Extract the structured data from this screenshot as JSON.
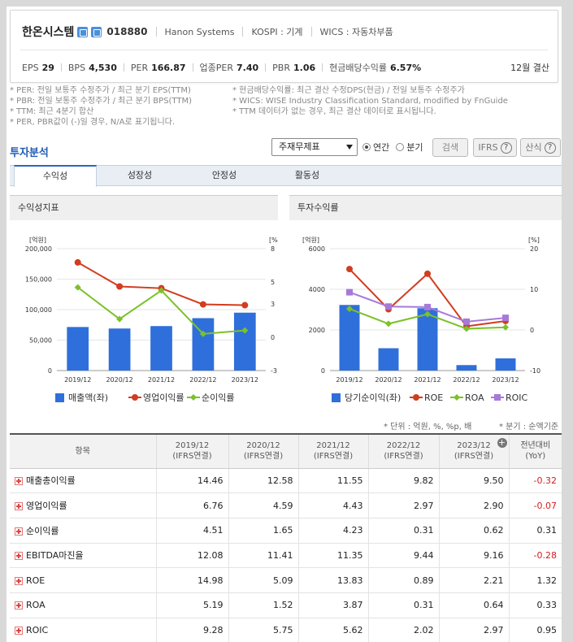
{
  "header": {
    "company_name": "한온시스템",
    "code": "018880",
    "english_name": "Hanon Systems",
    "market": "KOSPI : 기계",
    "wics": "WICS : 자동차부품",
    "metrics": [
      {
        "label": "EPS",
        "value": "29"
      },
      {
        "label": "BPS",
        "value": "4,530"
      },
      {
        "label": "PER",
        "value": "166.87"
      },
      {
        "label": "업종PER",
        "value": "7.40"
      },
      {
        "label": "PBR",
        "value": "1.06"
      },
      {
        "label": "현금배당수익률",
        "value": "6.57%"
      }
    ],
    "settlement": "12월 결산"
  },
  "notes": {
    "left": [
      "* PER: 전일 보통주 수정주가 / 최근 분기 EPS(TTM)",
      "* PBR: 전일 보통주 수정주가 / 최근 분기 BPS(TTM)",
      "* TTM: 최근 4분기 합산",
      "* PER, PBR값이 (-)일 경우, N/A로 표기됩니다."
    ],
    "right": [
      "* 현금배당수익률: 최근 결산 수정DPS(현금) / 전일 보통주 수정주가",
      "* WICS: WISE Industry Classification Standard, modified by FnGuide",
      "* TTM 데이터가 없는 경우, 최근 결산 데이터로 표시됩니다."
    ]
  },
  "section": {
    "title": "투자분석",
    "select_value": "주재무제표",
    "radio_annual": "연간",
    "radio_quarter": "분기",
    "search_button": "검색",
    "ifrs_button": "IFRS",
    "formula_button": "산식"
  },
  "tabs": [
    "수익성",
    "성장성",
    "안정성",
    "활동성"
  ],
  "panels": {
    "left_title": "수익성지표",
    "right_title": "투자수익률"
  },
  "chart_data": [
    {
      "type": "bar",
      "title": "수익성지표",
      "categories": [
        "2019/12",
        "2020/12",
        "2021/12",
        "2022/12",
        "2023/12"
      ],
      "left_axis_label": "[억원]",
      "right_axis_label": "[%]",
      "left_ylim": [
        0,
        200000
      ],
      "left_ticks": [
        "0",
        "50,000",
        "100,000",
        "150,000",
        "200,000"
      ],
      "right_ylim": [
        -3,
        8
      ],
      "right_ticks": [
        "-3",
        "0",
        "3",
        "5",
        "8"
      ],
      "series": [
        {
          "name": "매출액(좌)",
          "kind": "bar",
          "axis": "left",
          "color": "#2f6fdb",
          "values": [
            71500,
            69000,
            73000,
            86000,
            95000
          ]
        },
        {
          "name": "영업이익률",
          "kind": "line",
          "axis": "right",
          "color": "#d23c1f",
          "values": [
            6.76,
            4.59,
            4.43,
            2.97,
            2.9
          ]
        },
        {
          "name": "순이익률",
          "kind": "line",
          "axis": "right",
          "color": "#7cc12a",
          "values": [
            4.51,
            1.65,
            4.23,
            0.31,
            0.62
          ]
        }
      ]
    },
    {
      "type": "bar",
      "title": "투자수익률",
      "categories": [
        "2019/12",
        "2020/12",
        "2021/12",
        "2022/12",
        "2023/12"
      ],
      "left_axis_label": "[억원]",
      "right_axis_label": "[%]",
      "left_ylim": [
        0,
        6000
      ],
      "left_ticks": [
        "0",
        "2000",
        "4000",
        "6000"
      ],
      "right_ylim": [
        -10,
        20
      ],
      "right_ticks": [
        "-10",
        "0",
        "10",
        "20"
      ],
      "series": [
        {
          "name": "당기순이익(좌)",
          "kind": "bar",
          "axis": "left",
          "color": "#2f6fdb",
          "values": [
            3230,
            1100,
            3070,
            270,
            600
          ]
        },
        {
          "name": "ROE",
          "kind": "line",
          "axis": "right",
          "color": "#d23c1f",
          "values": [
            14.98,
            5.09,
            13.83,
            0.89,
            2.21
          ]
        },
        {
          "name": "ROA",
          "kind": "line",
          "axis": "right",
          "color": "#7cc12a",
          "values": [
            5.19,
            1.52,
            3.87,
            0.31,
            0.64
          ]
        },
        {
          "name": "ROIC",
          "kind": "line",
          "axis": "right",
          "color": "#a779d9",
          "values": [
            9.28,
            5.75,
            5.62,
            2.02,
            2.97
          ]
        }
      ]
    }
  ],
  "table": {
    "units_note": "* 단위 : 억원, %, %p, 배",
    "quarter_note": "* 분기 : 순액기준",
    "headers": [
      {
        "line1": "항목",
        "line2": ""
      },
      {
        "line1": "2019/12",
        "line2": "(IFRS연결)"
      },
      {
        "line1": "2020/12",
        "line2": "(IFRS연결)"
      },
      {
        "line1": "2021/12",
        "line2": "(IFRS연결)"
      },
      {
        "line1": "2022/12",
        "line2": "(IFRS연결)"
      },
      {
        "line1": "2023/12",
        "line2": "(IFRS연결)"
      },
      {
        "line1": "전년대비",
        "line2": "(YoY)"
      }
    ],
    "rows": [
      {
        "label": "매출총이익률",
        "values": [
          "14.46",
          "12.58",
          "11.55",
          "9.82",
          "9.50",
          "-0.32"
        ]
      },
      {
        "label": "영업이익률",
        "values": [
          "6.76",
          "4.59",
          "4.43",
          "2.97",
          "2.90",
          "-0.07"
        ]
      },
      {
        "label": "순이익률",
        "values": [
          "4.51",
          "1.65",
          "4.23",
          "0.31",
          "0.62",
          "0.31"
        ]
      },
      {
        "label": "EBITDA마진율",
        "values": [
          "12.08",
          "11.41",
          "11.35",
          "9.44",
          "9.16",
          "-0.28"
        ]
      },
      {
        "label": "ROE",
        "values": [
          "14.98",
          "5.09",
          "13.83",
          "0.89",
          "2.21",
          "1.32"
        ]
      },
      {
        "label": "ROA",
        "values": [
          "5.19",
          "1.52",
          "3.87",
          "0.31",
          "0.64",
          "0.33"
        ]
      },
      {
        "label": "ROIC",
        "values": [
          "9.28",
          "5.75",
          "5.62",
          "2.02",
          "2.97",
          "0.95"
        ]
      }
    ]
  },
  "colors": {
    "accent_blue": "#1f5bb5",
    "negative_red": "#d21f1f"
  }
}
